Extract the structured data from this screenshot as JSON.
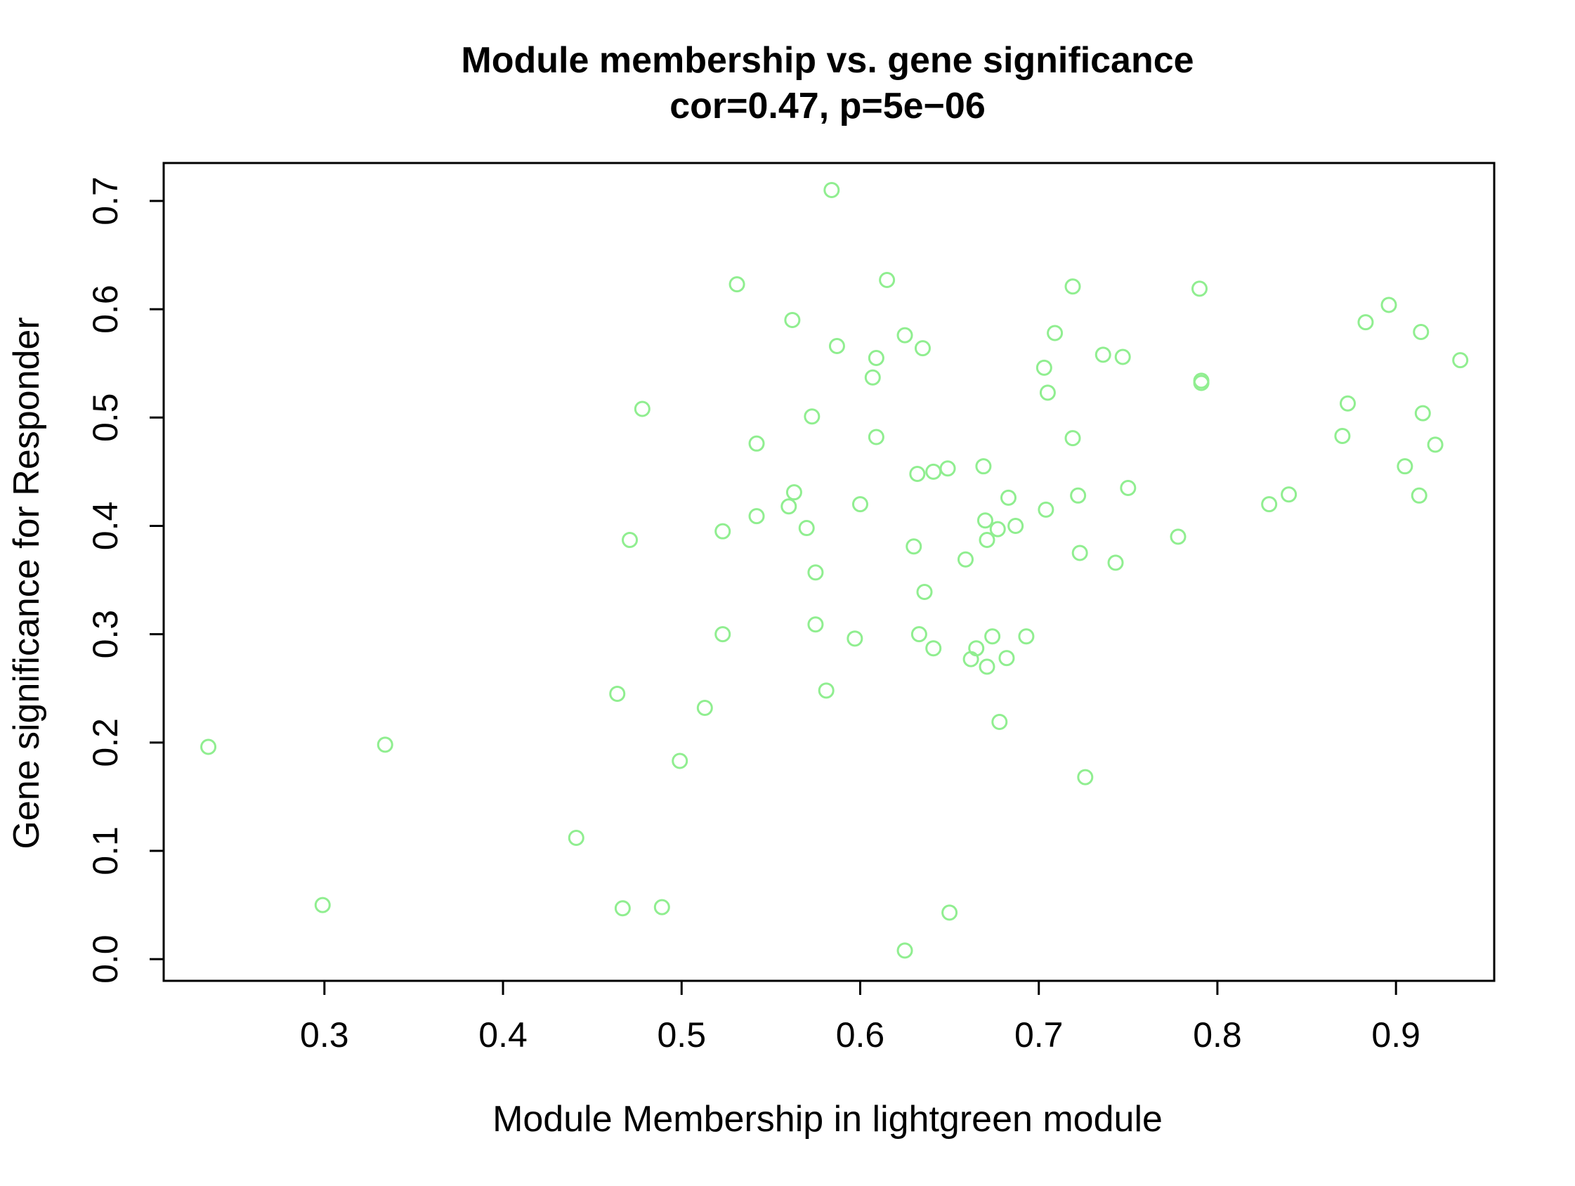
{
  "chart_data": {
    "type": "scatter",
    "title": "Module membership vs. gene significance",
    "subtitle": "cor=0.47, p=5e−06",
    "xlabel": "Module Membership in lightgreen module",
    "ylabel": "Gene significance for Responder",
    "xlim": [
      0.21,
      0.955
    ],
    "ylim": [
      -0.02,
      0.735
    ],
    "x_ticks": [
      0.3,
      0.4,
      0.5,
      0.6,
      0.7,
      0.8,
      0.9
    ],
    "x_tick_labels": [
      "0.3",
      "0.4",
      "0.5",
      "0.6",
      "0.7",
      "0.8",
      "0.9"
    ],
    "y_ticks": [
      0.0,
      0.1,
      0.2,
      0.3,
      0.4,
      0.5,
      0.6,
      0.7
    ],
    "y_tick_labels": [
      "0.0",
      "0.1",
      "0.2",
      "0.3",
      "0.4",
      "0.5",
      "0.6",
      "0.7"
    ],
    "grid": false,
    "point_color": "#90ee90",
    "series": [
      {
        "points": [
          [
            0.235,
            0.196
          ],
          [
            0.299,
            0.05
          ],
          [
            0.334,
            0.198
          ],
          [
            0.441,
            0.112
          ],
          [
            0.464,
            0.245
          ],
          [
            0.467,
            0.047
          ],
          [
            0.471,
            0.387
          ],
          [
            0.478,
            0.508
          ],
          [
            0.489,
            0.048
          ],
          [
            0.499,
            0.183
          ],
          [
            0.513,
            0.232
          ],
          [
            0.523,
            0.3
          ],
          [
            0.523,
            0.395
          ],
          [
            0.531,
            0.623
          ],
          [
            0.542,
            0.476
          ],
          [
            0.542,
            0.409
          ],
          [
            0.56,
            0.418
          ],
          [
            0.562,
            0.59
          ],
          [
            0.563,
            0.431
          ],
          [
            0.57,
            0.398
          ],
          [
            0.573,
            0.501
          ],
          [
            0.575,
            0.309
          ],
          [
            0.575,
            0.357
          ],
          [
            0.581,
            0.248
          ],
          [
            0.584,
            0.71
          ],
          [
            0.587,
            0.566
          ],
          [
            0.597,
            0.296
          ],
          [
            0.6,
            0.42
          ],
          [
            0.607,
            0.537
          ],
          [
            0.609,
            0.555
          ],
          [
            0.609,
            0.482
          ],
          [
            0.615,
            0.627
          ],
          [
            0.625,
            0.576
          ],
          [
            0.625,
            0.008
          ],
          [
            0.63,
            0.381
          ],
          [
            0.632,
            0.448
          ],
          [
            0.633,
            0.3
          ],
          [
            0.635,
            0.564
          ],
          [
            0.636,
            0.339
          ],
          [
            0.641,
            0.45
          ],
          [
            0.641,
            0.287
          ],
          [
            0.649,
            0.453
          ],
          [
            0.65,
            0.043
          ],
          [
            0.659,
            0.369
          ],
          [
            0.662,
            0.277
          ],
          [
            0.665,
            0.287
          ],
          [
            0.669,
            0.455
          ],
          [
            0.67,
            0.405
          ],
          [
            0.671,
            0.387
          ],
          [
            0.671,
            0.27
          ],
          [
            0.674,
            0.298
          ],
          [
            0.677,
            0.397
          ],
          [
            0.678,
            0.219
          ],
          [
            0.682,
            0.278
          ],
          [
            0.683,
            0.426
          ],
          [
            0.687,
            0.4
          ],
          [
            0.693,
            0.298
          ],
          [
            0.703,
            0.546
          ],
          [
            0.704,
            0.415
          ],
          [
            0.705,
            0.523
          ],
          [
            0.709,
            0.578
          ],
          [
            0.719,
            0.621
          ],
          [
            0.719,
            0.481
          ],
          [
            0.722,
            0.428
          ],
          [
            0.723,
            0.375
          ],
          [
            0.726,
            0.168
          ],
          [
            0.736,
            0.558
          ],
          [
            0.743,
            0.366
          ],
          [
            0.747,
            0.556
          ],
          [
            0.75,
            0.435
          ],
          [
            0.778,
            0.39
          ],
          [
            0.79,
            0.619
          ],
          [
            0.791,
            0.532
          ],
          [
            0.791,
            0.534
          ],
          [
            0.829,
            0.42
          ],
          [
            0.84,
            0.429
          ],
          [
            0.87,
            0.483
          ],
          [
            0.873,
            0.513
          ],
          [
            0.883,
            0.588
          ],
          [
            0.896,
            0.604
          ],
          [
            0.905,
            0.455
          ],
          [
            0.913,
            0.428
          ],
          [
            0.914,
            0.579
          ],
          [
            0.915,
            0.504
          ],
          [
            0.922,
            0.475
          ],
          [
            0.936,
            0.553
          ]
        ]
      }
    ]
  }
}
